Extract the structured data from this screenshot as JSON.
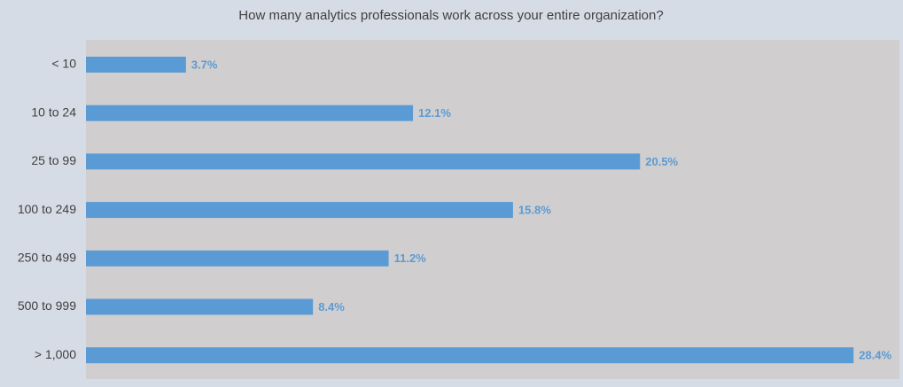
{
  "chart_data": {
    "type": "hbar",
    "title": "How many analytics professionals work across your entire organization?",
    "categories": [
      "< 10",
      "10 to 24",
      "25 to 99",
      "100 to 249",
      "250 to 499",
      "500 to 999",
      "> 1,000"
    ],
    "values": [
      3.7,
      12.1,
      20.5,
      15.8,
      11.2,
      8.4,
      28.4
    ],
    "value_labels": [
      "3.7%",
      "12.1%",
      "20.5%",
      "15.8%",
      "11.2%",
      "8.4%",
      "28.4%"
    ],
    "color": "#5b9bd5",
    "xlim": [
      0,
      30
    ]
  }
}
